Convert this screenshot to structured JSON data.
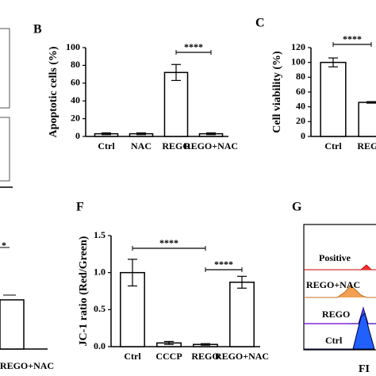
{
  "panel_labels": [
    "B",
    "C",
    "F",
    "G"
  ],
  "chart_data": [
    {
      "type": "bar",
      "ylabel": "Apoptotic cells (%)",
      "categories": [
        "Ctrl",
        "NAC",
        "REGO",
        "REGO+NAC"
      ],
      "values": [
        3,
        3,
        72,
        3
      ],
      "errors": [
        1,
        1,
        9,
        1
      ],
      "color": "#ffffff",
      "ylim": [
        0,
        100
      ],
      "yticks": [
        0,
        20,
        40,
        60,
        80,
        100
      ],
      "annotations": [
        "****"
      ]
    },
    {
      "type": "bar",
      "ylabel": "Cell viability (%)",
      "categories": [
        "Ctrl",
        "REGO"
      ],
      "values": [
        100,
        46
      ],
      "errors": [
        6,
        1
      ],
      "color": "#ffffff",
      "ylim": [
        0,
        120
      ],
      "yticks": [
        0,
        20,
        40,
        60,
        80,
        100,
        120
      ],
      "annotations": [
        "****"
      ]
    },
    {
      "type": "bar",
      "ylabel": "JC-1 ratio (Red/Green)",
      "categories": [
        "Ctrl",
        "CCCP",
        "REGO",
        "REGO+NAC"
      ],
      "values": [
        1.0,
        0.05,
        0.03,
        0.87
      ],
      "errors": [
        0.18,
        0.02,
        0.01,
        0.08
      ],
      "color": "#ffffff",
      "ylim": [
        0,
        1.5
      ],
      "yticks": [
        {
          "value": 0,
          "label": "0.0"
        },
        0.5,
        {
          "value": 1,
          "label": "1.0"
        },
        1.5
      ],
      "annotations": [
        "****",
        "****"
      ]
    }
  ],
  "histogram_labels": [
    "Positive",
    "REGO+NAC",
    "REGO",
    "Ctrl"
  ],
  "histogram_axis": "FI",
  "fragment_labels": [
    "*",
    "REGO+NAC"
  ]
}
